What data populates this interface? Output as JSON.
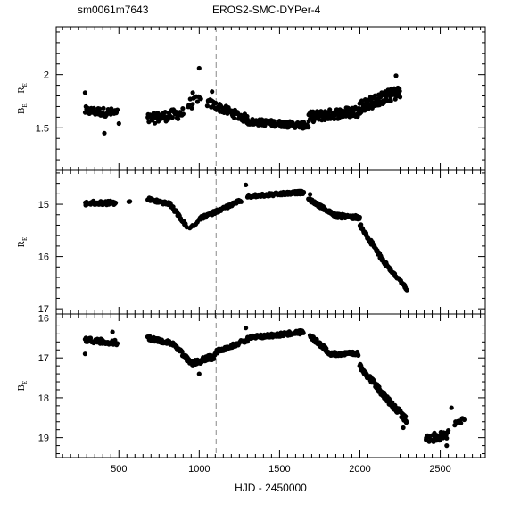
{
  "header": {
    "left": "sm0061m7643",
    "center": "EROS2-SMC-DYPer-4"
  },
  "chart_data": [
    {
      "type": "scatter",
      "panel": "top",
      "ylabel": {
        "main": "B",
        "sub": "E",
        "mid": " − R",
        "sub2": "E"
      },
      "ylim": [
        1.1,
        2.45
      ],
      "xlim": [
        110,
        2780
      ],
      "ytick_labels": [
        "1.5",
        "2"
      ],
      "ytick_values": [
        1.5,
        2.0
      ],
      "marker_line_x": 1105,
      "series": [
        {
          "name": "",
          "segments": [
            {
              "x0": 290,
              "x1": 490,
              "y0": 1.66,
              "y1": 1.64,
              "amp": 0.04,
              "n": 50
            },
            {
              "x0": 680,
              "x1": 900,
              "y0": 1.58,
              "y1": 1.64,
              "amp": 0.05,
              "n": 55
            },
            {
              "x0": 930,
              "x1": 1010,
              "y0": 1.72,
              "y1": 1.76,
              "amp": 0.05,
              "n": 12
            },
            {
              "x0": 1050,
              "x1": 1300,
              "y0": 1.74,
              "y1": 1.58,
              "amp": 0.04,
              "n": 60
            },
            {
              "x0": 1300,
              "x1": 1680,
              "y0": 1.56,
              "y1": 1.52,
              "amp": 0.03,
              "n": 110
            },
            {
              "x0": 1680,
              "x1": 2000,
              "y0": 1.6,
              "y1": 1.66,
              "amp": 0.05,
              "n": 110
            },
            {
              "x0": 2000,
              "x1": 2250,
              "y0": 1.7,
              "y1": 1.84,
              "amp": 0.06,
              "n": 100
            }
          ],
          "outliers": [
            [
              290,
              1.83
            ],
            [
              410,
              1.45
            ],
            [
              500,
              1.54
            ],
            [
              960,
              1.83
            ],
            [
              1000,
              2.06
            ],
            [
              1080,
              1.84
            ],
            [
              2225,
              1.99
            ]
          ]
        }
      ]
    },
    {
      "type": "scatter",
      "panel": "middle",
      "ylabel": {
        "main": "R",
        "sub": "E"
      },
      "ylim": [
        17.1,
        14.35
      ],
      "xlim": [
        110,
        2780
      ],
      "ytick_labels": [
        "15",
        "16",
        "17"
      ],
      "ytick_values": [
        15,
        16,
        17
      ],
      "marker_line_x": 1105,
      "series": [
        {
          "name": "",
          "segments": [
            {
              "x0": 290,
              "x1": 480,
              "y0": 14.98,
              "y1": 14.97,
              "amp": 0.04,
              "n": 45
            },
            {
              "x0": 560,
              "x1": 570,
              "y0": 14.95,
              "y1": 14.96,
              "amp": 0.02,
              "n": 3
            },
            {
              "x0": 680,
              "x1": 820,
              "y0": 14.9,
              "y1": 15.0,
              "amp": 0.03,
              "n": 40
            },
            {
              "x0": 820,
              "x1": 920,
              "y0": 15.0,
              "y1": 15.42,
              "amp": 0.03,
              "n": 30
            },
            {
              "x0": 940,
              "x1": 990,
              "y0": 15.46,
              "y1": 15.36,
              "amp": 0.02,
              "n": 6
            },
            {
              "x0": 1000,
              "x1": 1260,
              "y0": 15.28,
              "y1": 14.93,
              "amp": 0.03,
              "n": 70
            },
            {
              "x0": 1300,
              "x1": 1650,
              "y0": 14.85,
              "y1": 14.77,
              "amp": 0.03,
              "n": 110
            },
            {
              "x0": 1680,
              "x1": 1850,
              "y0": 14.9,
              "y1": 15.22,
              "amp": 0.03,
              "n": 60
            },
            {
              "x0": 1850,
              "x1": 2000,
              "y0": 15.22,
              "y1": 15.25,
              "amp": 0.04,
              "n": 50
            },
            {
              "x0": 2000,
              "x1": 2150,
              "y0": 15.4,
              "y1": 16.1,
              "amp": 0.04,
              "n": 55
            },
            {
              "x0": 2150,
              "x1": 2290,
              "y0": 16.1,
              "y1": 16.62,
              "amp": 0.03,
              "n": 50
            }
          ],
          "outliers": [
            [
              1290,
              14.63
            ],
            [
              1690,
              14.81
            ]
          ]
        }
      ]
    },
    {
      "type": "scatter",
      "panel": "bottom",
      "ylabel": {
        "main": "B",
        "sub": "E"
      },
      "ylim": [
        19.5,
        15.9
      ],
      "xlim": [
        110,
        2780
      ],
      "xlabel": "HJD - 2450000",
      "xtick_labels": [
        "500",
        "1000",
        "1500",
        "2000",
        "2500"
      ],
      "xtick_values": [
        500,
        1000,
        1500,
        2000,
        2500
      ],
      "ytick_labels": [
        "16",
        "17",
        "18",
        "19"
      ],
      "ytick_values": [
        16,
        17,
        18,
        19
      ],
      "marker_line_x": 1105,
      "series": [
        {
          "name": "",
          "segments": [
            {
              "x0": 290,
              "x1": 490,
              "y0": 16.55,
              "y1": 16.62,
              "amp": 0.06,
              "n": 50
            },
            {
              "x0": 680,
              "x1": 850,
              "y0": 16.5,
              "y1": 16.65,
              "amp": 0.05,
              "n": 45
            },
            {
              "x0": 850,
              "x1": 950,
              "y0": 16.7,
              "y1": 17.15,
              "amp": 0.06,
              "n": 25
            },
            {
              "x0": 950,
              "x1": 1100,
              "y0": 17.15,
              "y1": 16.95,
              "amp": 0.07,
              "n": 40
            },
            {
              "x0": 1100,
              "x1": 1300,
              "y0": 16.85,
              "y1": 16.55,
              "amp": 0.05,
              "n": 50
            },
            {
              "x0": 1300,
              "x1": 1650,
              "y0": 16.5,
              "y1": 16.35,
              "amp": 0.05,
              "n": 110
            },
            {
              "x0": 1690,
              "x1": 1820,
              "y0": 16.45,
              "y1": 16.9,
              "amp": 0.05,
              "n": 50
            },
            {
              "x0": 1820,
              "x1": 1990,
              "y0": 16.9,
              "y1": 16.9,
              "amp": 0.05,
              "n": 50
            },
            {
              "x0": 2000,
              "x1": 2150,
              "y0": 17.2,
              "y1": 17.95,
              "amp": 0.07,
              "n": 60
            },
            {
              "x0": 2150,
              "x1": 2290,
              "y0": 17.95,
              "y1": 18.55,
              "amp": 0.08,
              "n": 55
            },
            {
              "x0": 2410,
              "x1": 2550,
              "y0": 19.05,
              "y1": 18.9,
              "amp": 0.12,
              "n": 35
            },
            {
              "x0": 2590,
              "x1": 2650,
              "y0": 18.65,
              "y1": 18.55,
              "amp": 0.06,
              "n": 10
            }
          ],
          "outliers": [
            [
              290,
              16.9
            ],
            [
              460,
              16.35
            ],
            [
              1000,
              17.4
            ],
            [
              1290,
              16.25
            ],
            [
              2270,
              18.75
            ],
            [
              2540,
              19.2
            ],
            [
              2570,
              18.25
            ]
          ]
        }
      ]
    }
  ]
}
